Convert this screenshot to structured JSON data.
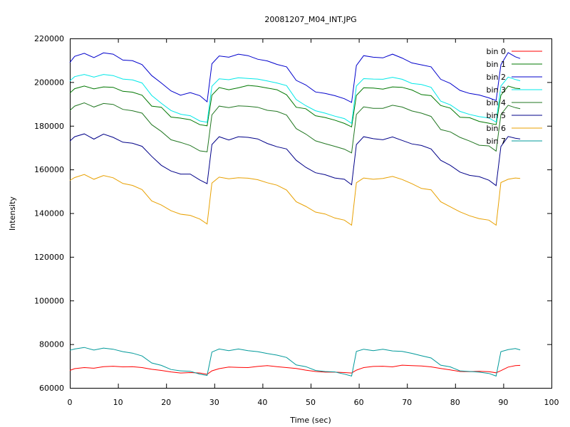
{
  "chart_data": {
    "type": "line",
    "title": "20081207_M04_INT.JPG",
    "xlabel": "Time (sec)",
    "ylabel": "Intensity",
    "xlim": [
      0,
      100
    ],
    "ylim": [
      60000,
      220000
    ],
    "xticks": [
      0,
      10,
      20,
      30,
      40,
      50,
      60,
      70,
      80,
      90,
      100
    ],
    "yticks": [
      60000,
      80000,
      100000,
      120000,
      140000,
      160000,
      180000,
      200000,
      220000
    ],
    "grid": false,
    "legend_position": "top-right",
    "series": [
      {
        "name": "bin 0",
        "color": "#ff0000",
        "x": [
          0,
          1,
          3,
          5,
          7,
          9,
          11,
          13,
          15,
          17,
          19,
          21,
          23,
          25,
          27,
          28.5,
          29.5,
          31,
          33,
          35,
          37,
          39,
          41,
          43,
          45,
          47,
          49,
          51,
          53,
          55,
          57,
          58.5,
          59.5,
          61,
          63,
          65,
          67,
          69,
          71,
          73,
          75,
          77,
          79,
          81,
          83,
          85,
          87,
          88.5,
          89.5,
          91,
          92.5,
          93.5
        ],
        "y": [
          68000,
          68800,
          69300,
          69000,
          69700,
          69900,
          69600,
          69700,
          69300,
          68500,
          68000,
          67300,
          66800,
          67000,
          66800,
          66200,
          67800,
          68800,
          69500,
          69400,
          69300,
          69800,
          70200,
          69700,
          69300,
          68900,
          68100,
          67500,
          67200,
          67200,
          67000,
          66800,
          68100,
          69300,
          69800,
          69900,
          69600,
          70400,
          70200,
          70000,
          69600,
          68900,
          68200,
          67500,
          67400,
          67600,
          67400,
          66900,
          67900,
          69500,
          70200,
          70300
        ]
      },
      {
        "name": "bin 1",
        "color": "#007700",
        "x": [
          0,
          1,
          3,
          5,
          7,
          9,
          11,
          13,
          15,
          17,
          19,
          21,
          23,
          25,
          27,
          28.5,
          29.5,
          31,
          33,
          35,
          37,
          39,
          41,
          43,
          45,
          47,
          49,
          51,
          53,
          55,
          57,
          58.5,
          59.5,
          61,
          63,
          65,
          67,
          69,
          71,
          73,
          75,
          77,
          79,
          81,
          83,
          85,
          87,
          88.5,
          89.5,
          91,
          92.5,
          93.5
        ],
        "y": [
          195000,
          197000,
          198200,
          196900,
          197800,
          197600,
          195800,
          195400,
          194000,
          189000,
          188500,
          184000,
          183500,
          182800,
          180500,
          180000,
          194000,
          197500,
          196500,
          197400,
          198500,
          198100,
          197300,
          196500,
          194200,
          188500,
          187800,
          184600,
          183800,
          182600,
          181100,
          179500,
          193900,
          197400,
          197300,
          196800,
          197800,
          197600,
          196400,
          194300,
          193800,
          189300,
          188100,
          183900,
          183700,
          182000,
          181200,
          180500,
          194000,
          198200,
          197200,
          197000
        ]
      },
      {
        "name": "bin 2",
        "color": "#0000cc",
        "x": [
          0,
          1,
          3,
          5,
          7,
          9,
          11,
          13,
          15,
          17,
          19,
          21,
          23,
          25,
          27,
          28.5,
          29.5,
          31,
          33,
          35,
          37,
          39,
          41,
          43,
          45,
          47,
          49,
          51,
          53,
          55,
          57,
          58.5,
          59.5,
          61,
          63,
          65,
          67,
          69,
          71,
          73,
          75,
          77,
          79,
          81,
          83,
          85,
          87,
          88.5,
          89.5,
          91,
          92.5,
          93.5
        ],
        "y": [
          209000,
          211800,
          213200,
          211200,
          213400,
          212800,
          210100,
          209800,
          208000,
          203000,
          199600,
          196000,
          194000,
          195200,
          193800,
          191000,
          208400,
          212000,
          211400,
          212800,
          212100,
          210500,
          209700,
          208100,
          207000,
          200800,
          198700,
          195500,
          194800,
          193800,
          192400,
          190700,
          207600,
          212100,
          211400,
          211100,
          212800,
          211000,
          208800,
          207900,
          207000,
          201300,
          199400,
          196200,
          194800,
          194100,
          192800,
          191600,
          207900,
          213500,
          211600,
          210800
        ]
      },
      {
        "name": "bin 3",
        "color": "#00e8e8",
        "x": [
          0,
          1,
          3,
          5,
          7,
          9,
          11,
          13,
          15,
          17,
          19,
          21,
          23,
          25,
          27,
          28.5,
          29.5,
          31,
          33,
          35,
          37,
          39,
          41,
          43,
          45,
          47,
          49,
          51,
          53,
          55,
          57,
          58.5,
          59.5,
          61,
          63,
          65,
          67,
          69,
          71,
          73,
          75,
          77,
          79,
          81,
          83,
          85,
          87,
          88.5,
          89.5,
          91,
          92.5,
          93.5
        ],
        "y": [
          200500,
          202500,
          203500,
          202300,
          203500,
          203000,
          201400,
          201000,
          199600,
          193900,
          190300,
          187000,
          185300,
          184600,
          182200,
          181600,
          198100,
          201500,
          201100,
          202000,
          201700,
          201400,
          200500,
          199600,
          198400,
          192000,
          189200,
          186900,
          185800,
          184400,
          183300,
          181100,
          198200,
          201600,
          201400,
          201300,
          202200,
          201300,
          199400,
          198900,
          197600,
          191300,
          189600,
          186600,
          185200,
          184200,
          183600,
          181700,
          198200,
          202300,
          201200,
          200600
        ]
      },
      {
        "name": "bin 4",
        "color": "#227722",
        "x": [
          0,
          1,
          3,
          5,
          7,
          9,
          11,
          13,
          15,
          17,
          19,
          21,
          23,
          25,
          27,
          28.5,
          29.5,
          31,
          33,
          35,
          37,
          39,
          41,
          43,
          45,
          47,
          49,
          51,
          53,
          55,
          57,
          58.5,
          59.5,
          61,
          63,
          65,
          67,
          69,
          71,
          73,
          75,
          77,
          79,
          81,
          83,
          85,
          87,
          88.5,
          89.5,
          91,
          92.5,
          93.5
        ],
        "y": [
          187000,
          189000,
          190500,
          188600,
          190200,
          189800,
          187500,
          186900,
          185800,
          180500,
          177400,
          173600,
          172400,
          171000,
          168500,
          168100,
          185000,
          189000,
          188300,
          189100,
          188900,
          188500,
          187100,
          186600,
          184900,
          178700,
          176200,
          173100,
          171800,
          170600,
          169300,
          167600,
          185200,
          188700,
          188000,
          188000,
          189400,
          188600,
          186800,
          185800,
          184300,
          178300,
          177200,
          174700,
          173000,
          171100,
          170800,
          168400,
          185100,
          189400,
          188300,
          187800
        ]
      },
      {
        "name": "bin 5",
        "color": "#000088",
        "x": [
          0,
          1,
          3,
          5,
          7,
          9,
          11,
          13,
          15,
          17,
          19,
          21,
          23,
          25,
          27,
          28.5,
          29.5,
          31,
          33,
          35,
          37,
          39,
          41,
          43,
          45,
          47,
          49,
          51,
          53,
          55,
          57,
          58.5,
          59.5,
          61,
          63,
          65,
          67,
          69,
          71,
          73,
          75,
          77,
          79,
          81,
          83,
          85,
          87,
          88.5,
          89.5,
          91,
          92.5,
          93.5
        ],
        "y": [
          173000,
          175000,
          176300,
          173900,
          176200,
          174700,
          172500,
          172000,
          170600,
          166000,
          161900,
          159300,
          157900,
          157900,
          155200,
          153500,
          171400,
          175000,
          173500,
          175000,
          174700,
          174000,
          171900,
          170400,
          169400,
          164200,
          161000,
          158500,
          157600,
          156100,
          155500,
          153000,
          171400,
          175000,
          174100,
          173600,
          174900,
          173300,
          171700,
          171000,
          169400,
          164200,
          161900,
          158800,
          157300,
          156700,
          155100,
          152600,
          170500,
          175100,
          174300,
          174000
        ]
      },
      {
        "name": "bin 6",
        "color": "#e8a000",
        "x": [
          0,
          1,
          3,
          5,
          7,
          9,
          11,
          13,
          15,
          17,
          19,
          21,
          23,
          25,
          27,
          28.5,
          29.5,
          31,
          33,
          35,
          37,
          39,
          41,
          43,
          45,
          47,
          49,
          51,
          53,
          55,
          57,
          58.5,
          59.5,
          61,
          63,
          65,
          67,
          69,
          71,
          73,
          75,
          77,
          79,
          81,
          83,
          85,
          87,
          88.5,
          89.5,
          91,
          92.5,
          93.5
        ],
        "y": [
          155000,
          156300,
          157700,
          155500,
          157200,
          156200,
          153600,
          152700,
          150800,
          145600,
          143700,
          141100,
          139500,
          139000,
          137300,
          135000,
          153800,
          156500,
          155700,
          156200,
          156000,
          155300,
          153900,
          152800,
          150600,
          145200,
          143100,
          140500,
          139600,
          137800,
          136800,
          134500,
          153900,
          156100,
          155500,
          155900,
          156800,
          155400,
          153500,
          151300,
          150700,
          145200,
          142900,
          140600,
          138800,
          137500,
          136800,
          134500,
          154000,
          155500,
          156100,
          155900
        ]
      },
      {
        "name": "bin 7",
        "color": "#00999a",
        "x": [
          0,
          1,
          3,
          5,
          7,
          9,
          11,
          13,
          15,
          17,
          19,
          21,
          23,
          25,
          27,
          28.5,
          29.5,
          31,
          33,
          35,
          37,
          39,
          41,
          43,
          45,
          47,
          49,
          51,
          53,
          55,
          57,
          58.5,
          59.5,
          61,
          63,
          65,
          67,
          69,
          71,
          73,
          75,
          77,
          79,
          81,
          83,
          85,
          87,
          88.5,
          89.5,
          91,
          92.5,
          93.5
        ],
        "y": [
          77200,
          77800,
          78500,
          77300,
          78200,
          77700,
          76600,
          75900,
          74600,
          71400,
          70300,
          68400,
          67800,
          67600,
          66300,
          65700,
          76400,
          77800,
          77000,
          77800,
          77000,
          76600,
          75700,
          75000,
          73900,
          70500,
          69700,
          68000,
          67500,
          67300,
          66300,
          65400,
          76700,
          77700,
          77000,
          77700,
          76900,
          76700,
          75800,
          74700,
          73700,
          70400,
          69600,
          67800,
          67500,
          67200,
          66600,
          65400,
          76600,
          77500,
          78000,
          77400
        ]
      }
    ]
  }
}
